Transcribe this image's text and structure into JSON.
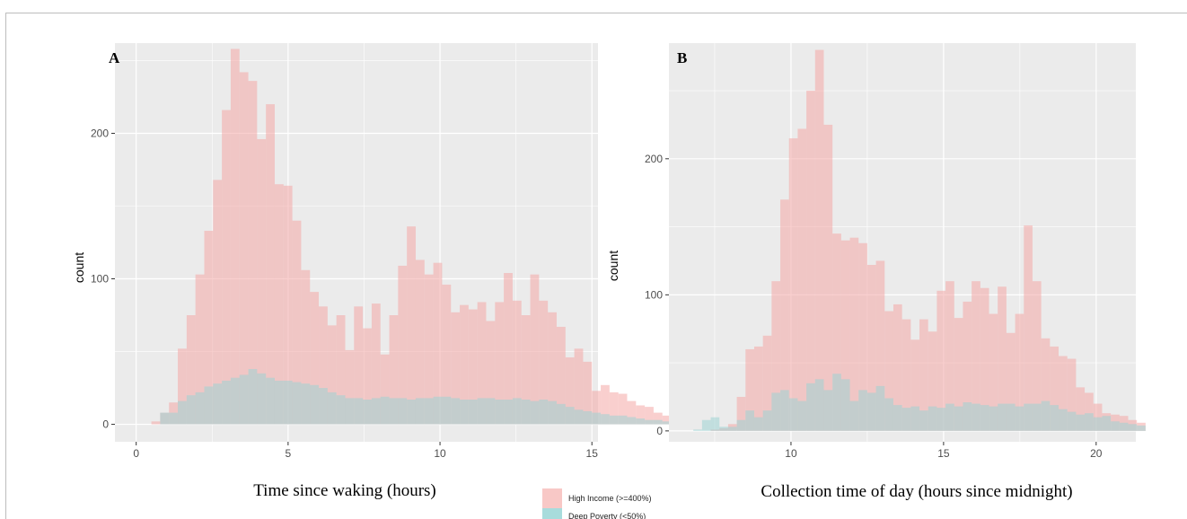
{
  "colors": {
    "panel_bg": "#ebebeb",
    "grid": "#ffffff",
    "high_income": "#f4a8a5",
    "deep_poverty": "#9ed3d3"
  },
  "legend": [
    {
      "label": "High Income (>=400%)",
      "color": "#f8c8c6"
    },
    {
      "label": "Deep Poverty (<50%)",
      "color": "#a8dcdc"
    }
  ],
  "chart_data": [
    {
      "type": "histogram",
      "panel": "A",
      "xlabel": "Time since waking (hours)",
      "ylabel": "count",
      "xlim": [
        -0.7,
        15.2
      ],
      "ylim": [
        -12,
        262
      ],
      "xticks": [
        0,
        5,
        10,
        15
      ],
      "yticks": [
        0,
        100,
        200
      ],
      "grid": true,
      "binwidth": 0.29,
      "series": [
        {
          "name": "High Income (>=400%)",
          "x0": 0.5,
          "values": [
            2,
            8,
            15,
            52,
            75,
            103,
            133,
            168,
            216,
            258,
            242,
            236,
            196,
            220,
            165,
            164,
            140,
            106,
            91,
            81,
            68,
            75,
            51,
            81,
            66,
            83,
            48,
            75,
            109,
            136,
            113,
            103,
            111,
            96,
            77,
            82,
            79,
            84,
            71,
            84,
            104,
            85,
            75,
            103,
            85,
            77,
            67,
            46,
            52,
            43,
            23,
            27,
            22,
            21,
            16,
            13,
            12,
            8,
            6,
            5
          ]
        },
        {
          "name": "Deep Poverty (<50%)",
          "x0": 0.5,
          "values": [
            0,
            8,
            8,
            16,
            20,
            22,
            26,
            28,
            30,
            32,
            34,
            38,
            35,
            32,
            30,
            30,
            29,
            28,
            27,
            25,
            22,
            20,
            18,
            18,
            17,
            18,
            19,
            18,
            18,
            17,
            18,
            18,
            19,
            19,
            18,
            17,
            17,
            18,
            18,
            17,
            17,
            18,
            17,
            16,
            17,
            16,
            14,
            12,
            10,
            9,
            8,
            7,
            6,
            6,
            5,
            4,
            3,
            3,
            2,
            1
          ]
        }
      ]
    },
    {
      "type": "histogram",
      "panel": "B",
      "xlabel": "Collection time of day (hours since midnight)",
      "ylabel": "count",
      "xlim": [
        6.0,
        21.3
      ],
      "ylim": [
        -8,
        285
      ],
      "xticks": [
        10,
        15,
        20
      ],
      "yticks": [
        0,
        100,
        200
      ],
      "grid": true,
      "binwidth": 0.285,
      "series": [
        {
          "name": "High Income (>=400%)",
          "x0": 6.8,
          "values": [
            0,
            0,
            1,
            2,
            5,
            25,
            60,
            62,
            70,
            110,
            170,
            215,
            222,
            250,
            280,
            225,
            145,
            140,
            142,
            138,
            122,
            125,
            88,
            93,
            82,
            67,
            82,
            73,
            103,
            110,
            83,
            95,
            110,
            105,
            86,
            106,
            72,
            86,
            151,
            110,
            68,
            62,
            55,
            53,
            32,
            28,
            20,
            13,
            12,
            11,
            8,
            6
          ]
        },
        {
          "name": "Deep Poverty (<50%)",
          "x0": 6.8,
          "values": [
            1,
            8,
            10,
            3,
            3,
            8,
            15,
            10,
            15,
            28,
            30,
            24,
            22,
            35,
            38,
            30,
            42,
            38,
            22,
            30,
            28,
            33,
            24,
            19,
            17,
            18,
            15,
            18,
            17,
            20,
            18,
            21,
            20,
            19,
            18,
            20,
            20,
            18,
            20,
            20,
            22,
            19,
            16,
            14,
            12,
            13,
            10,
            11,
            7,
            6,
            5,
            4
          ]
        }
      ]
    }
  ]
}
